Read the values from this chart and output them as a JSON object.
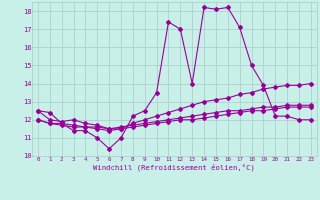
{
  "x": [
    0,
    1,
    2,
    3,
    4,
    5,
    6,
    7,
    8,
    9,
    10,
    11,
    12,
    13,
    14,
    15,
    16,
    17,
    18,
    19,
    20,
    21,
    22,
    23
  ],
  "line1": [
    12.5,
    12.4,
    11.8,
    11.4,
    11.4,
    11.0,
    10.4,
    11.0,
    12.2,
    12.5,
    13.5,
    17.4,
    17.0,
    14.0,
    18.2,
    18.1,
    18.2,
    17.1,
    15.0,
    13.9,
    12.2,
    12.2,
    12.0,
    12.0
  ],
  "line2": [
    12.5,
    12.0,
    11.9,
    12.0,
    11.8,
    11.7,
    11.5,
    11.5,
    11.8,
    12.0,
    12.2,
    12.4,
    12.6,
    12.8,
    13.0,
    13.1,
    13.2,
    13.4,
    13.5,
    13.7,
    13.8,
    13.9,
    13.9,
    14.0
  ],
  "line3": [
    12.0,
    11.8,
    11.8,
    11.7,
    11.6,
    11.6,
    11.5,
    11.6,
    11.7,
    11.8,
    11.9,
    12.0,
    12.1,
    12.2,
    12.3,
    12.4,
    12.5,
    12.5,
    12.6,
    12.7,
    12.7,
    12.8,
    12.8,
    12.8
  ],
  "line4": [
    12.0,
    11.8,
    11.7,
    11.6,
    11.6,
    11.5,
    11.4,
    11.5,
    11.6,
    11.7,
    11.8,
    11.9,
    12.0,
    12.0,
    12.1,
    12.2,
    12.3,
    12.4,
    12.5,
    12.5,
    12.6,
    12.7,
    12.7,
    12.7
  ],
  "line_color": "#990099",
  "bg_color": "#c8f0e8",
  "grid_color": "#a8ccc8",
  "xlabel": "Windchill (Refroidissement éolien,°C)",
  "ylim": [
    10,
    18.5
  ],
  "xlim": [
    -0.5,
    23.5
  ],
  "yticks": [
    10,
    11,
    12,
    13,
    14,
    15,
    16,
    17,
    18
  ],
  "xticks": [
    0,
    1,
    2,
    3,
    4,
    5,
    6,
    7,
    8,
    9,
    10,
    11,
    12,
    13,
    14,
    15,
    16,
    17,
    18,
    19,
    20,
    21,
    22,
    23
  ],
  "marker": "D",
  "markersize": 2.0,
  "linewidth": 0.8
}
